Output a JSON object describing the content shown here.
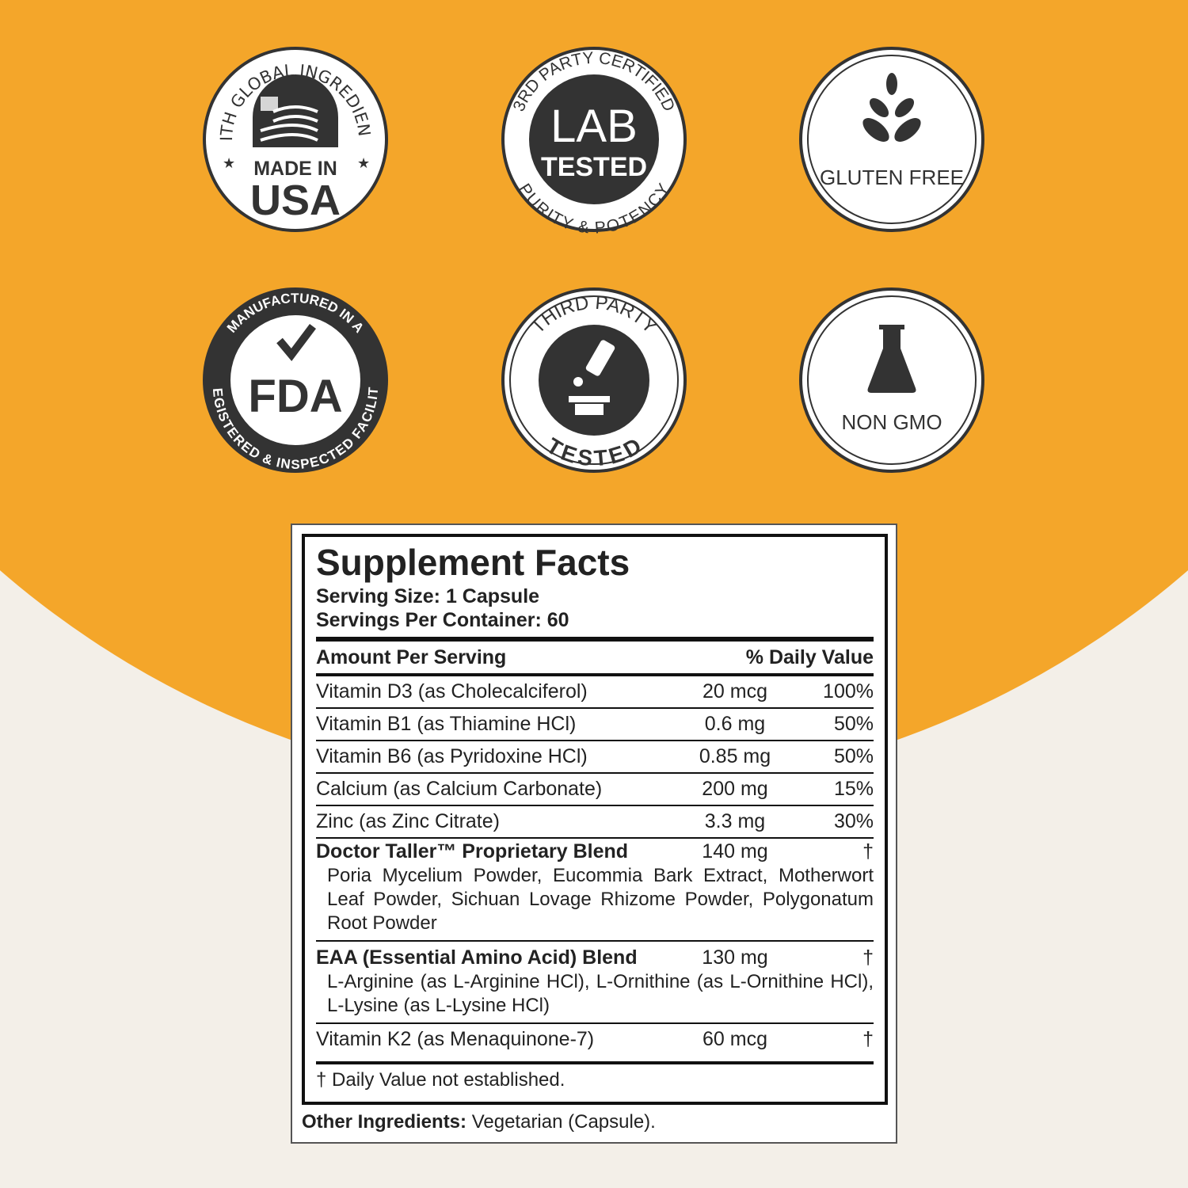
{
  "colors": {
    "orange": "#F4A62A",
    "cream": "#F3EFE8",
    "dark": "#333333"
  },
  "badges": [
    {
      "top_arc": "WITH GLOBAL INGREDIENTS",
      "line1": "MADE IN",
      "line2": "USA",
      "icon": "us-flag-icon"
    },
    {
      "top_arc": "3RD PARTY CERTIFIED",
      "line1": "LAB",
      "line2": "TESTED",
      "bottom_arc": "PURITY & POTENCY"
    },
    {
      "label": "GLUTEN FREE",
      "icon": "wheat-icon"
    },
    {
      "top_arc": "MANUFACTURED IN A",
      "center": "FDA",
      "bottom_arc": "REGISTERED & INSPECTED FACILITY",
      "icon": "checkmark-icon"
    },
    {
      "top_arc": "THIRD PARTY",
      "bottom_arc": "TESTED",
      "icon": "microscope-icon"
    },
    {
      "label": "NON GMO",
      "icon": "flask-icon"
    }
  ],
  "facts": {
    "title": "Supplement Facts",
    "serving_size": "Serving Size: 1 Capsule",
    "servings_per_container": "Servings Per Container: 60",
    "header_amount": "Amount Per Serving",
    "header_dv": "% Daily Value",
    "rows": [
      {
        "name": "Vitamin D3 (as Cholecalciferol)",
        "amount": "20 mcg",
        "dv": "100%"
      },
      {
        "name": "Vitamin B1 (as Thiamine HCl)",
        "amount": "0.6 mg",
        "dv": "50%"
      },
      {
        "name": "Vitamin B6 (as Pyridoxine HCl)",
        "amount": "0.85 mg",
        "dv": "50%"
      },
      {
        "name": "Calcium (as Calcium Carbonate)",
        "amount": "200 mg",
        "dv": "15%"
      },
      {
        "name": "Zinc (as Zinc Citrate)",
        "amount": "3.3 mg",
        "dv": "30%"
      }
    ],
    "blends": [
      {
        "name": "Doctor Taller™ Proprietary Blend",
        "amount": "140 mg",
        "dv": "†",
        "desc": "Poria Mycelium Powder, Eucommia Bark Extract, Motherwort Leaf Powder, Sichuan Lovage Rhizome Powder, Polygonatum Root Powder"
      },
      {
        "name": "EAA (Essential Amino Acid) Blend",
        "amount": "130 mg",
        "dv": "†",
        "desc": "L-Arginine (as L-Arginine HCl), L-Ornithine (as L-Ornithine HCl), L-Lysine (as L-Lysine HCl)"
      }
    ],
    "last_row": {
      "name": "Vitamin K2 (as Menaquinone-7)",
      "amount": "60 mcg",
      "dv": "†"
    },
    "footnote": "† Daily Value not established.",
    "other_label": "Other Ingredients:",
    "other_value": " Vegetarian (Capsule)."
  }
}
